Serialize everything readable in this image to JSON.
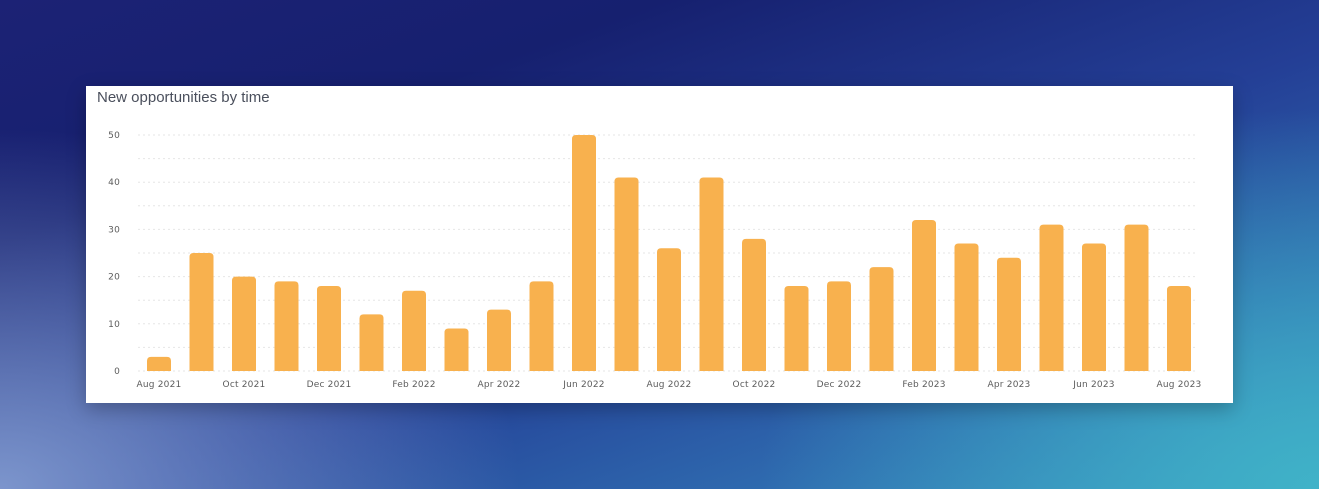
{
  "chart_data": {
    "type": "bar",
    "title": "New opportunities by time",
    "categories": [
      "Aug 2021",
      "Sep 2021",
      "Oct 2021",
      "Nov 2021",
      "Dec 2021",
      "Jan 2022",
      "Feb 2022",
      "Mar 2022",
      "Apr 2022",
      "May 2022",
      "Jun 2022",
      "Jul 2022",
      "Aug 2022",
      "Sep 2022",
      "Oct 2022",
      "Nov 2022",
      "Dec 2022",
      "Jan 2023",
      "Feb 2023",
      "Mar 2023",
      "Apr 2023",
      "May 2023",
      "Jun 2023",
      "Jul 2023",
      "Aug 2023"
    ],
    "values": [
      3,
      25,
      20,
      19,
      18,
      12,
      17,
      9,
      13,
      19,
      50,
      41,
      26,
      41,
      28,
      18,
      19,
      22,
      32,
      27,
      24,
      31,
      27,
      31,
      18
    ],
    "x_tick_labels": [
      "Aug 2021",
      "Oct 2021",
      "Dec 2021",
      "Feb 2022",
      "Apr 2022",
      "Jun 2022",
      "Aug 2022",
      "Oct 2022",
      "Dec 2022",
      "Feb 2023",
      "Apr 2023",
      "Jun 2023",
      "Aug 2023"
    ],
    "y_ticks": [
      0,
      10,
      20,
      30,
      40,
      50
    ],
    "ylim": [
      0,
      50
    ],
    "xlabel": "",
    "ylabel": "",
    "grid": true,
    "legend": "none",
    "bar_color": "#f8b14e"
  }
}
